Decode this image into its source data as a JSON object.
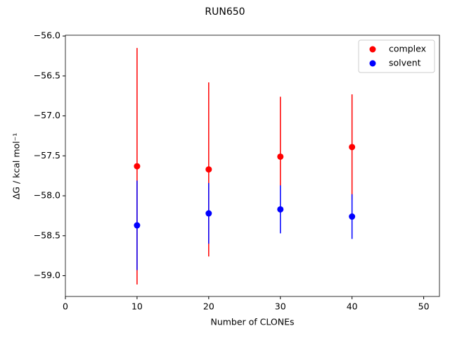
{
  "chart_data": {
    "type": "errorbar-scatter",
    "title": "RUN650",
    "x_label": "Number of CLONEs",
    "y_label": "ΔG / kcal mol⁻¹",
    "x": [
      10,
      20,
      30,
      40
    ],
    "series": [
      {
        "name": "complex",
        "color": "#ff0000",
        "values": [
          -57.63,
          -57.67,
          -57.51,
          -57.39
        ],
        "errors": [
          1.48,
          1.09,
          0.75,
          0.66
        ]
      },
      {
        "name": "solvent",
        "color": "#0000ff",
        "values": [
          -58.37,
          -58.22,
          -58.17,
          -58.26
        ],
        "errors": [
          0.56,
          0.38,
          0.3,
          0.28
        ]
      }
    ],
    "xlim": [
      0,
      52.2
    ],
    "ylim": [
      -59.26,
      -55.99
    ],
    "xticks": [
      0,
      10,
      20,
      30,
      40,
      50
    ],
    "yticks": [
      {
        "value": -56.0,
        "label": "−56.0"
      },
      {
        "value": -56.5,
        "label": "−56.5"
      },
      {
        "value": -57.0,
        "label": "−57.0"
      },
      {
        "value": -57.5,
        "label": "−57.5"
      },
      {
        "value": -58.0,
        "label": "−58.0"
      },
      {
        "value": -58.5,
        "label": "−58.5"
      },
      {
        "value": -59.0,
        "label": "−59.0"
      }
    ],
    "legend": "upper right",
    "grid": false
  }
}
